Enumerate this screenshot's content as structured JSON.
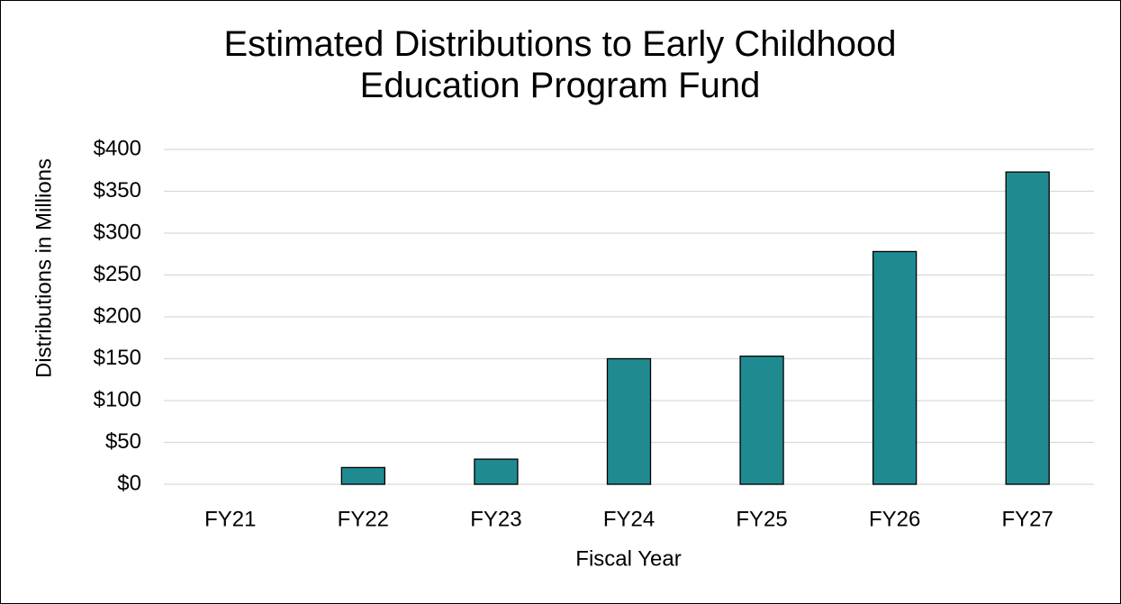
{
  "chart_data": {
    "type": "bar",
    "title": "Estimated Distributions to Early Childhood Education Program Fund",
    "x_label": "Fiscal Year",
    "y_label": "Distributions in Millions",
    "categories": [
      "FY21",
      "FY22",
      "FY23",
      "FY24",
      "FY25",
      "FY26",
      "FY27"
    ],
    "values": [
      0,
      20,
      30,
      150,
      153,
      278,
      373
    ],
    "color": "#1f8b91",
    "ylim": [
      0,
      400
    ],
    "yticks": [
      {
        "value": 0,
        "label": "$0"
      },
      {
        "value": 50,
        "label": "$50"
      },
      {
        "value": 100,
        "label": "$100"
      },
      {
        "value": 150,
        "label": "$150"
      },
      {
        "value": 200,
        "label": "$200"
      },
      {
        "value": 250,
        "label": "$250"
      },
      {
        "value": 300,
        "label": "$300"
      },
      {
        "value": 350,
        "label": "$350"
      },
      {
        "value": 400,
        "label": "$400"
      }
    ],
    "grid": true
  }
}
